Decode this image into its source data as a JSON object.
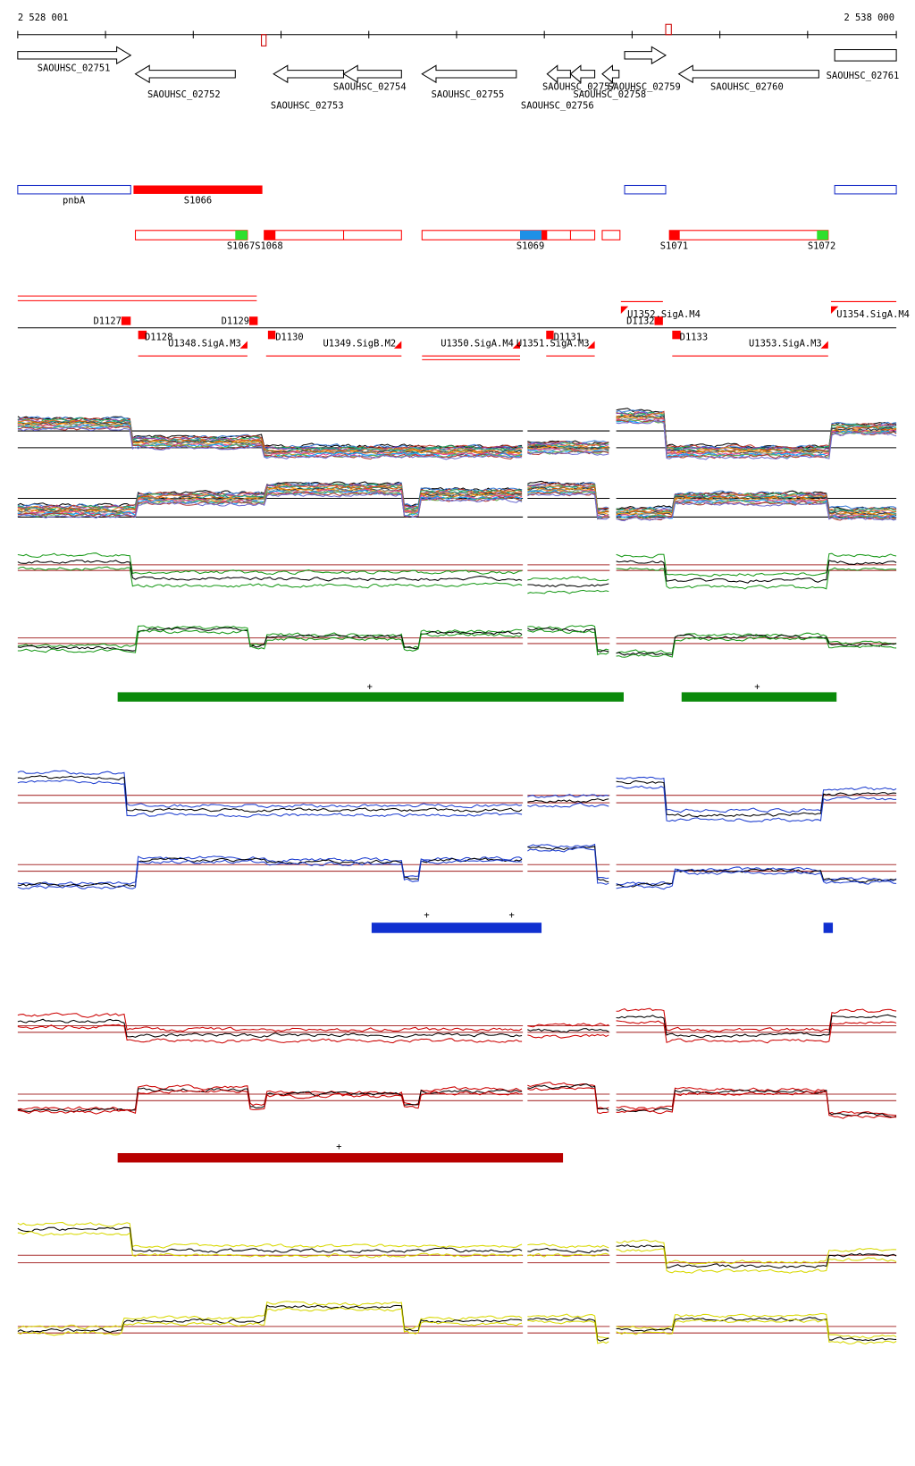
{
  "ruler": {
    "start": "2 528 001",
    "end": "2 538 000"
  },
  "genes": [
    "SAOUHSC_02751",
    "SAOUHSC_02752",
    "SAOUHSC_02753",
    "SAOUHSC_02754",
    "SAOUHSC_02755",
    "SAOUHSC_02756",
    "SAOUHSC_02757",
    "SAOUHSC_02758",
    "SAOUHSC_02759",
    "SAOUHSC_02760",
    "SAOUHSC_02761"
  ],
  "regions": [
    "pnbA",
    "S1066",
    "S1067",
    "S1068",
    "S1069",
    "S1071",
    "S1072"
  ],
  "features": [
    "D1127",
    "D1128",
    "U1348.SigA.M3",
    "D1129",
    "D1130",
    "U1349.SigB.M2",
    "U1350.SigA.M4",
    "U1351.SigA.M3",
    "D1131",
    "U1352.SigA.M4",
    "D1132",
    "D1133",
    "U1353.SigA.M3",
    "U1354.SigA.M4"
  ],
  "markers": [
    "+",
    "+",
    "+",
    "+",
    "+"
  ]
}
